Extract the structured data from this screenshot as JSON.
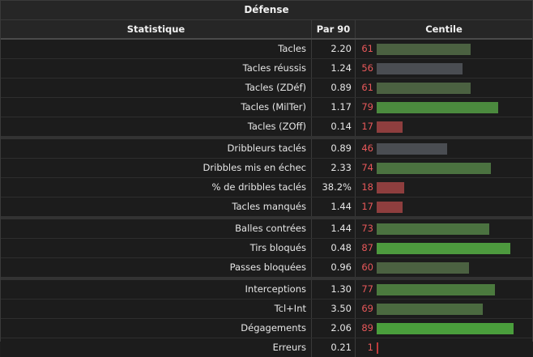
{
  "title": "Défense",
  "headers": {
    "stat": "Statistique",
    "per90": "Par 90",
    "pct": "Centile"
  },
  "groups": [
    {
      "rows": [
        {
          "label": "Tacles",
          "value": "2.20",
          "pct": 61,
          "color": "#4b6141"
        },
        {
          "label": "Tacles réussis",
          "value": "1.24",
          "pct": 56,
          "color": "#4a4d52"
        },
        {
          "label": "Tacles (ZDéf)",
          "value": "0.89",
          "pct": 61,
          "color": "#4b6141"
        },
        {
          "label": "Tacles (MilTer)",
          "value": "1.17",
          "pct": 79,
          "color": "#4b8a3e"
        },
        {
          "label": "Tacles (ZOff)",
          "value": "0.14",
          "pct": 17,
          "color": "#8e3e3e"
        }
      ]
    },
    {
      "rows": [
        {
          "label": "Dribbleurs taclés",
          "value": "0.89",
          "pct": 46,
          "color": "#4a4d52"
        },
        {
          "label": "Dribbles mis en échec",
          "value": "2.33",
          "pct": 74,
          "color": "#4b7240"
        },
        {
          "label": "% de dribbles taclés",
          "value": "38.2%",
          "pct": 18,
          "color": "#8e3e3e"
        },
        {
          "label": "Tacles manqués",
          "value": "1.44",
          "pct": 17,
          "color": "#8e3e3e"
        }
      ]
    },
    {
      "rows": [
        {
          "label": "Balles contrées",
          "value": "1.44",
          "pct": 73,
          "color": "#4b7240"
        },
        {
          "label": "Tirs bloqués",
          "value": "0.48",
          "pct": 87,
          "color": "#4d9a3e"
        },
        {
          "label": "Passes bloquées",
          "value": "0.96",
          "pct": 60,
          "color": "#4b6141"
        }
      ]
    },
    {
      "rows": [
        {
          "label": "Interceptions",
          "value": "1.30",
          "pct": 77,
          "color": "#4b7a3e"
        },
        {
          "label": "Tcl+Int",
          "value": "3.50",
          "pct": 69,
          "color": "#4b6a40"
        },
        {
          "label": "Dégagements",
          "value": "2.06",
          "pct": 89,
          "color": "#4a9e3c"
        },
        {
          "label": "Erreurs",
          "value": "0.21",
          "pct": 1,
          "color": "#c03a3a"
        }
      ]
    }
  ]
}
